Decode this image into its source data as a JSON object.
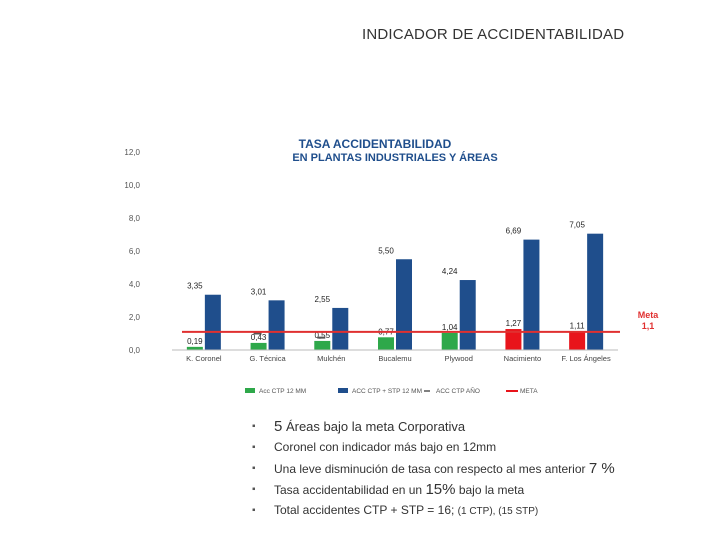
{
  "page": {
    "title": "INDICADOR DE ACCIDENTABILIDAD"
  },
  "chart_data": {
    "type": "bar",
    "title": "TASA ACCIDENTABILIDAD",
    "subtitle": "EN PLANTAS INDUSTRIALES Y ÁREAS",
    "categories": [
      "K. Coronel",
      "G. Técnica",
      "Mulchén",
      "Bucalemu",
      "Plywood",
      "Nacimiento",
      "F. Los Ángeles"
    ],
    "yticks": [
      "0,0",
      "2,0",
      "4,0",
      "6,0",
      "8,0",
      "10,0",
      "12,0"
    ],
    "ylim": [
      0,
      12
    ],
    "series": [
      {
        "name": "Acc CTP 12 MM",
        "color": "#2ea84a",
        "values": [
          0.19,
          0.43,
          0.55,
          0.77,
          1.04,
          1.27,
          1.11
        ],
        "labels": [
          "0,19",
          "0,43",
          "0,55",
          "0,77",
          "1,04",
          "1,27",
          "1,11"
        ],
        "highlight_color": "#e8141b",
        "highlight_indices": [
          5,
          6
        ]
      },
      {
        "name": "ACC CTP + STP 12 MM",
        "color": "#1f4e8c",
        "values": [
          3.35,
          3.01,
          2.55,
          5.5,
          4.24,
          6.69,
          7.05
        ],
        "labels": [
          "3,35",
          "3,01",
          "2,55",
          "5,50",
          "4,24",
          "6,69",
          "7,05"
        ]
      }
    ],
    "legend_extra": [
      {
        "name": "ACC CTP AÑO",
        "color": "#555555",
        "style": "dash"
      },
      {
        "name": "META",
        "color": "#e8141b",
        "style": "line"
      }
    ],
    "meta": {
      "value": 1.1,
      "label": "Meta",
      "value_label": "1,1",
      "color": "#e03030"
    },
    "year_markers": [
      {
        "category_index": 1,
        "value": 1.0
      },
      {
        "category_index": 2,
        "value": 0.75
      }
    ],
    "legend_position": "bottom",
    "grid": false
  },
  "bullets": {
    "items": [
      {
        "pre": "5",
        "text": " Áreas bajo la meta Corporativa",
        "post_big": "",
        "post": ""
      },
      {
        "pre": "",
        "text": "Coronel con indicador más bajo en 12mm",
        "post_big": "",
        "post": ""
      },
      {
        "pre": "",
        "text": "Una leve disminución  de tasa  con respecto al mes anterior ",
        "post_big": "7 %",
        "post": ""
      },
      {
        "pre": "",
        "text": "Tasa accidentabilidad en un ",
        "post_big": "15%",
        "post": "  bajo la meta"
      },
      {
        "pre": "",
        "text": "Total accidentes CTP + STP = 16;   ",
        "post_big": "",
        "post": "(1 CTP), (15  STP)"
      }
    ]
  }
}
